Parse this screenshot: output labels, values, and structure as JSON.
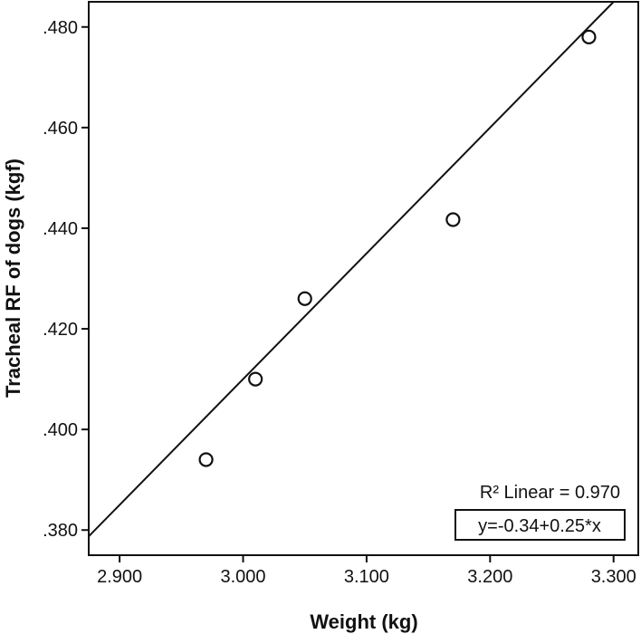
{
  "chart_data": {
    "type": "scatter",
    "title": "",
    "xlabel": "Weight (kg)",
    "ylabel": "Tracheal RF of dogs (kgf)",
    "xlim": [
      2.875,
      3.32
    ],
    "ylim": [
      0.375,
      0.485
    ],
    "x_ticks": [
      2.9,
      3.0,
      3.1,
      3.2,
      3.3
    ],
    "x_tick_labels": [
      "2.900",
      "3.000",
      "3.100",
      "3.200",
      "3.300"
    ],
    "y_ticks": [
      0.38,
      0.4,
      0.42,
      0.44,
      0.46,
      0.48
    ],
    "y_tick_labels": [
      ".380",
      ".400",
      ".420",
      ".440",
      ".460",
      ".480"
    ],
    "grid": false,
    "series": [
      {
        "x": [
          2.97,
          3.01,
          3.05,
          3.17,
          3.28
        ],
        "y": [
          0.394,
          0.41,
          0.426,
          0.4417,
          0.478
        ],
        "marker": "open-circle"
      }
    ],
    "fit_line": {
      "intercept": -0.34,
      "slope": 0.25
    },
    "annotations": {
      "r2_text": "R² Linear = 0.970",
      "equation_text": "y=-0.34+0.25*x"
    },
    "colors": {
      "stroke": "#111111",
      "background": "#ffffff"
    }
  }
}
